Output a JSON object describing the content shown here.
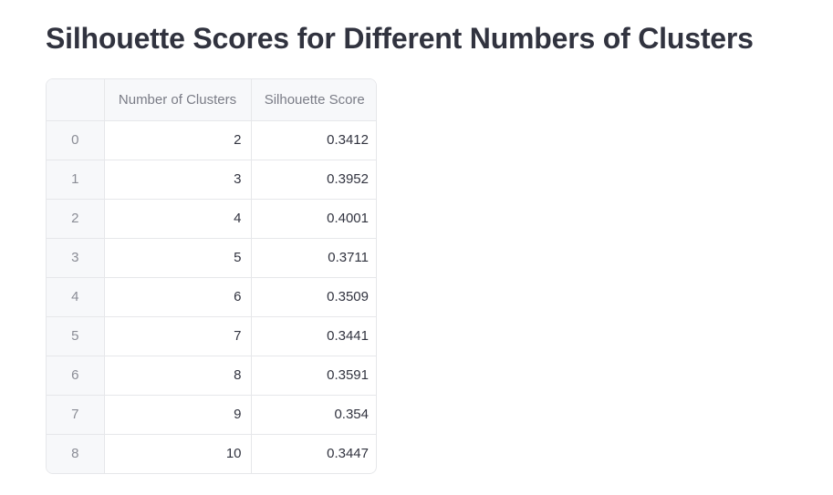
{
  "page": {
    "title": "Silhouette Scores for Different Numbers of Clusters"
  },
  "table": {
    "columns": [
      "",
      "Number of Clusters",
      "Silhouette Score"
    ],
    "rows": [
      {
        "index": "0",
        "clusters": "2",
        "score": "0.3412"
      },
      {
        "index": "1",
        "clusters": "3",
        "score": "0.3952"
      },
      {
        "index": "2",
        "clusters": "4",
        "score": "0.4001"
      },
      {
        "index": "3",
        "clusters": "5",
        "score": "0.3711"
      },
      {
        "index": "4",
        "clusters": "6",
        "score": "0.3509"
      },
      {
        "index": "5",
        "clusters": "7",
        "score": "0.3441"
      },
      {
        "index": "6",
        "clusters": "8",
        "score": "0.3591"
      },
      {
        "index": "7",
        "clusters": "9",
        "score": "0.354"
      },
      {
        "index": "8",
        "clusters": "10",
        "score": "0.3447"
      }
    ]
  }
}
